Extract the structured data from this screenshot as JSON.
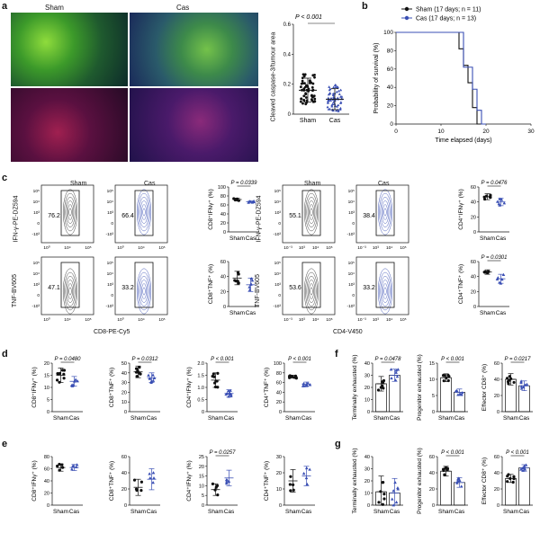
{
  "panels": {
    "a": "a",
    "b": "b",
    "c": "c",
    "d": "d",
    "e": "e",
    "f": "f",
    "g": "g"
  },
  "panel_a": {
    "sham_label": "Sham",
    "cas_label": "Cas",
    "chart_data": {
      "type": "scatter",
      "ylabel": "Cleaved caspase-3/tumour area",
      "ylim": [
        0,
        0.6
      ],
      "yticks": [
        "0",
        "0.2",
        "0.4",
        "0.6"
      ],
      "categories": [
        "Sham",
        "Cas"
      ],
      "pvalue": "P < 0.001",
      "series": [
        {
          "name": "Sham",
          "mean": 0.16,
          "sd": 0.08
        },
        {
          "name": "Cas",
          "mean": 0.1,
          "sd": 0.07
        }
      ]
    }
  },
  "panel_b": {
    "chart_data": {
      "type": "line",
      "xlabel": "Time elapsed (days)",
      "ylabel": "Probability of survival (%)",
      "xlim": [
        0,
        30
      ],
      "ylim": [
        0,
        100
      ],
      "xticks": [
        "0",
        "10",
        "20",
        "30"
      ],
      "yticks": [
        "0",
        "20",
        "40",
        "60",
        "80",
        "100"
      ],
      "series": [
        {
          "name": "Sham (17 days; n = 11)",
          "color": "#111111",
          "x": [
            0,
            14,
            14,
            15,
            15,
            16,
            16,
            17,
            17,
            18,
            18,
            19
          ],
          "y": [
            100,
            100,
            82,
            82,
            64,
            64,
            45,
            45,
            18,
            18,
            0,
            0
          ]
        },
        {
          "name": "Cas (17 days; n = 13)",
          "color": "#3a4fb4",
          "x": [
            0,
            15,
            15,
            17,
            17,
            18,
            18,
            19,
            19,
            20
          ],
          "y": [
            100,
            100,
            62,
            62,
            38,
            38,
            15,
            15,
            0,
            0
          ]
        }
      ]
    }
  },
  "panel_c": {
    "cd8": {
      "sham": "Sham",
      "cas": "Cas",
      "ylab_ifn": "IFN-γ-PE-DZ594",
      "ylab_tnf": "TNF-BV605",
      "xlab": "CD8-PE-Cy5",
      "gates": {
        "sham_ifn": "76.2",
        "cas_ifn": "66.4",
        "sham_tnf": "47.1",
        "cas_tnf": "33.2"
      }
    },
    "cd4": {
      "sham": "Sham",
      "cas": "Cas",
      "ylab_ifn": "IFN-γ-PE-DZ594",
      "ylab_tnf": "TNF-BV605",
      "xlab": "CD4-V450",
      "gates": {
        "sham_ifn": "55.1",
        "cas_ifn": "38.4",
        "sham_tnf": "53.6",
        "cas_tnf": "33.2"
      }
    },
    "flow_ticks_y": [
      "10⁵",
      "10⁴",
      "10³",
      "0",
      "-10³"
    ],
    "flow_ticks_x": [
      "10⁰",
      "10⁴",
      "10⁵"
    ],
    "flow_ticks_x_cd4": [
      "10⁻³",
      "10³",
      "10⁴",
      "10⁵"
    ],
    "charts": [
      {
        "ylabel": "CD8⁺IFNγ⁺ (%)",
        "pvalue": "P = 0.0339",
        "yticks": [
          "0",
          "20",
          "40",
          "60",
          "80",
          "100"
        ],
        "ylim": [
          0,
          100
        ],
        "categories": [
          "Sham",
          "Cas"
        ],
        "series": [
          {
            "name": "Sham",
            "mean": 72,
            "sd": 3
          },
          {
            "name": "Cas",
            "mean": 67,
            "sd": 2
          }
        ]
      },
      {
        "ylabel": "CD8⁺TNF⁺ (%)",
        "pvalue": "",
        "yticks": [
          "0",
          "20",
          "40",
          "60"
        ],
        "ylim": [
          0,
          60
        ],
        "categories": [
          "Sham",
          "Cas"
        ],
        "series": [
          {
            "name": "Sham",
            "mean": 38,
            "sd": 9
          },
          {
            "name": "Cas",
            "mean": 29,
            "sd": 9
          }
        ]
      },
      {
        "ylabel": "CD4⁺IFNγ⁺ (%)",
        "pvalue": "P = 0.0476",
        "yticks": [
          "0",
          "20",
          "40",
          "60"
        ],
        "ylim": [
          0,
          60
        ],
        "categories": [
          "Sham",
          "Cas"
        ],
        "series": [
          {
            "name": "Sham",
            "mean": 47,
            "sd": 4
          },
          {
            "name": "Cas",
            "mean": 40,
            "sd": 5
          }
        ]
      },
      {
        "ylabel": "CD4⁺TNF⁺ (%)",
        "pvalue": "P = 0.0301",
        "yticks": [
          "0",
          "20",
          "40",
          "60"
        ],
        "ylim": [
          0,
          60
        ],
        "categories": [
          "Sham",
          "Cas"
        ],
        "series": [
          {
            "name": "Sham",
            "mean": 46,
            "sd": 3
          },
          {
            "name": "Cas",
            "mean": 37,
            "sd": 6
          }
        ]
      }
    ]
  },
  "panel_d": {
    "charts": [
      {
        "ylabel": "CD8⁺IFNγ⁺ (%)",
        "pvalue": "P = 0.0480",
        "yticks": [
          "0",
          "5",
          "10",
          "15",
          "20"
        ],
        "ylim": [
          0,
          20
        ],
        "categories": [
          "Sham",
          "Cas"
        ],
        "series": [
          {
            "name": "Sham",
            "mean": 15,
            "sd": 3
          },
          {
            "name": "Cas",
            "mean": 12.5,
            "sd": 2
          }
        ]
      },
      {
        "ylabel": "CD8⁺TNF⁺ (%)",
        "pvalue": "P = 0.0312",
        "yticks": [
          "0",
          "10",
          "20",
          "30",
          "40",
          "50"
        ],
        "ylim": [
          0,
          50
        ],
        "categories": [
          "Sham",
          "Cas"
        ],
        "series": [
          {
            "name": "Sham",
            "mean": 41,
            "sd": 6
          },
          {
            "name": "Cas",
            "mean": 35,
            "sd": 5
          }
        ]
      },
      {
        "ylabel": "CD4⁺IFNγ⁺ (%)",
        "pvalue": "P < 0.001",
        "yticks": [
          "0",
          "0.5",
          "1.0",
          "1.5",
          "2.0"
        ],
        "ylim": [
          0,
          2
        ],
        "categories": [
          "Sham",
          "Cas"
        ],
        "series": [
          {
            "name": "Sham",
            "mean": 1.3,
            "sd": 0.3
          },
          {
            "name": "Cas",
            "mean": 0.75,
            "sd": 0.15
          }
        ]
      },
      {
        "ylabel": "CD4⁺TNF⁺ (%)",
        "pvalue": "P < 0.001",
        "yticks": [
          "0",
          "20",
          "40",
          "60",
          "80",
          "100"
        ],
        "ylim": [
          0,
          100
        ],
        "categories": [
          "Sham",
          "Cas"
        ],
        "series": [
          {
            "name": "Sham",
            "mean": 72,
            "sd": 3
          },
          {
            "name": "Cas",
            "mean": 57,
            "sd": 4
          }
        ]
      }
    ]
  },
  "panel_e": {
    "charts": [
      {
        "ylabel": "CD8⁺IFNγ⁺ (%)",
        "pvalue": "",
        "yticks": [
          "0",
          "20",
          "40",
          "60",
          "80"
        ],
        "ylim": [
          0,
          80
        ],
        "categories": [
          "Sham",
          "Cas"
        ],
        "series": [
          {
            "name": "Sham",
            "mean": 62,
            "sd": 6
          },
          {
            "name": "Cas",
            "mean": 62,
            "sd": 5
          }
        ]
      },
      {
        "ylabel": "CD8⁺TNF⁺ (%)",
        "pvalue": "",
        "yticks": [
          "0",
          "20",
          "40",
          "60"
        ],
        "ylim": [
          0,
          60
        ],
        "categories": [
          "Sham",
          "Cas"
        ],
        "series": [
          {
            "name": "Sham",
            "mean": 22,
            "sd": 10
          },
          {
            "name": "Cas",
            "mean": 32,
            "sd": 13
          }
        ]
      },
      {
        "ylabel": "CD4⁺IFNγ⁺ (%)",
        "pvalue": "P = 0.0257",
        "yticks": [
          "0",
          "5",
          "10",
          "15",
          "20",
          "25"
        ],
        "ylim": [
          0,
          25
        ],
        "categories": [
          "Sham",
          "Cas"
        ],
        "series": [
          {
            "name": "Sham",
            "mean": 8,
            "sd": 3
          },
          {
            "name": "Cas",
            "mean": 14,
            "sd": 4
          }
        ]
      },
      {
        "ylabel": "CD4⁺TNF⁺ (%)",
        "pvalue": "",
        "yticks": [
          "0",
          "10",
          "20",
          "30"
        ],
        "ylim": [
          0,
          30
        ],
        "categories": [
          "Sham",
          "Cas"
        ],
        "series": [
          {
            "name": "Sham",
            "mean": 15,
            "sd": 7
          },
          {
            "name": "Cas",
            "mean": 18,
            "sd": 6
          }
        ]
      }
    ]
  },
  "panel_f": {
    "charts": [
      {
        "ylabel": "Terminally exhausted (%)",
        "pvalue": "P = 0.0478",
        "yticks": [
          "0",
          "10",
          "20",
          "30",
          "40"
        ],
        "ylim": [
          0,
          40
        ],
        "categories": [
          "Sham",
          "Cas"
        ],
        "series": [
          {
            "name": "Sham",
            "mean": 23,
            "sd": 6
          },
          {
            "name": "Cas",
            "mean": 30,
            "sd": 5
          }
        ]
      },
      {
        "ylabel": "Progenitor exhausted (%)",
        "pvalue": "P < 0.001",
        "yticks": [
          "0",
          "5",
          "10",
          "15"
        ],
        "ylim": [
          0,
          15
        ],
        "categories": [
          "Sham",
          "Cas"
        ],
        "series": [
          {
            "name": "Sham",
            "mean": 10.5,
            "sd": 1.2
          },
          {
            "name": "Cas",
            "mean": 6,
            "sd": 1
          }
        ]
      },
      {
        "ylabel": "Effector CD8⁺ (%)",
        "pvalue": "P = 0.0217",
        "yticks": [
          "0",
          "20",
          "40",
          "60"
        ],
        "ylim": [
          0,
          60
        ],
        "categories": [
          "Sham",
          "Cas"
        ],
        "series": [
          {
            "name": "Sham",
            "mean": 40,
            "sd": 7
          },
          {
            "name": "Cas",
            "mean": 32,
            "sd": 6
          }
        ]
      }
    ]
  },
  "panel_g": {
    "charts": [
      {
        "ylabel": "Terminally exhausted (%)",
        "pvalue": "",
        "yticks": [
          "0",
          "10",
          "20",
          "30",
          "40"
        ],
        "ylim": [
          0,
          40
        ],
        "categories": [
          "Sham",
          "Cas"
        ],
        "series": [
          {
            "name": "Sham",
            "mean": 11,
            "sd": 13
          },
          {
            "name": "Cas",
            "mean": 10,
            "sd": 12
          }
        ]
      },
      {
        "ylabel": "Progenitor exhausted (%)",
        "pvalue": "P < 0.001",
        "yticks": [
          "0",
          "20",
          "40",
          "60"
        ],
        "ylim": [
          0,
          60
        ],
        "categories": [
          "Sham",
          "Cas"
        ],
        "series": [
          {
            "name": "Sham",
            "mean": 42,
            "sd": 6
          },
          {
            "name": "Cas",
            "mean": 28,
            "sd": 6
          }
        ]
      },
      {
        "ylabel": "Effector CD8⁺ (%)",
        "pvalue": "P < 0.001",
        "yticks": [
          "0",
          "20",
          "40",
          "60"
        ],
        "ylim": [
          0,
          60
        ],
        "categories": [
          "Sham",
          "Cas"
        ],
        "series": [
          {
            "name": "Sham",
            "mean": 33,
            "sd": 5
          },
          {
            "name": "Cas",
            "mean": 46,
            "sd": 4
          }
        ]
      }
    ]
  }
}
